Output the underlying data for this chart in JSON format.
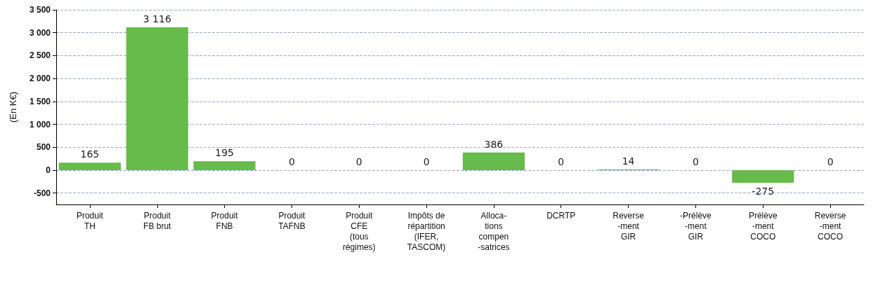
{
  "chart_data": {
    "type": "bar",
    "ylabel": "(En K€)",
    "categories": [
      "Produit\nTH",
      "Produit\nFB brut",
      "Produit\nFNB",
      "Produit\nTAFNB",
      "Produit\nCFE\n(tous\nrégimes)",
      "Impôts de\nrépartition\n(IFER,\nTASCOM)",
      "Alloca-\ntions\ncompen\n-satrices",
      "DCRTP",
      "Reverse\n-ment\nGIR",
      "-Prélève\n-ment\nGIR",
      "Prélève\n-ment\nCOCO",
      "Reverse\n-ment\nCOCO"
    ],
    "values": [
      165,
      3116,
      195,
      0,
      0,
      0,
      386,
      0,
      14,
      0,
      -275,
      0
    ],
    "color": "#66bb4a",
    "value_labels": [
      "165",
      "3 116",
      "195",
      "0",
      "0",
      "0",
      "386",
      "0",
      "14",
      "0",
      "-275",
      "0"
    ],
    "ylim": [
      -750,
      3500
    ],
    "yticks": [
      {
        "value": -500,
        "label": "-500"
      },
      0,
      500,
      {
        "value": 1000,
        "label": "1 000"
      },
      {
        "value": 1500,
        "label": "1 500"
      },
      {
        "value": 2000,
        "label": "2 000"
      },
      {
        "value": 2500,
        "label": "2 500"
      },
      {
        "value": 3000,
        "label": "3 000"
      },
      {
        "value": 3500,
        "label": "3 500"
      }
    ],
    "grid": "y"
  }
}
